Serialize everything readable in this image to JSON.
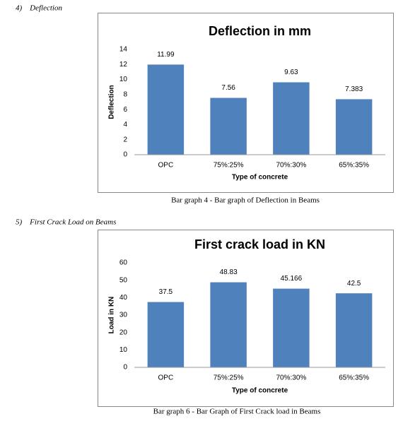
{
  "headings": [
    "4)    Deflection",
    "5)    First Crack Load on Beams"
  ],
  "captions": [
    "Bar graph 4 - Bar graph of Deflection in Beams",
    "Bar graph 6 - Bar Graph of First Crack load in Beams"
  ],
  "chart_data": [
    {
      "type": "bar",
      "title": "Deflection in mm",
      "x_label": "Type of concrete",
      "y_label": "Deflection",
      "categories": [
        "OPC",
        "75%:25%",
        "70%:30%",
        "65%:35%"
      ],
      "values": [
        11.99,
        7.56,
        9.63,
        7.383
      ],
      "color": "#4f81bd",
      "ylim": [
        0,
        14
      ],
      "yticks": [
        0,
        2,
        4,
        6,
        8,
        10,
        12,
        14
      ],
      "grid": false
    },
    {
      "type": "bar",
      "title": "First crack load in KN",
      "x_label": "Type of concrete",
      "y_label": "Load in KN",
      "categories": [
        "OPC",
        "75%:25%",
        "70%:30%",
        "65%:35%"
      ],
      "values": [
        37.5,
        48.83,
        45.166,
        42.5
      ],
      "color": "#4f81bd",
      "ylim": [
        0,
        60
      ],
      "yticks": [
        0,
        10,
        20,
        30,
        40,
        50,
        60
      ],
      "grid": false
    }
  ]
}
